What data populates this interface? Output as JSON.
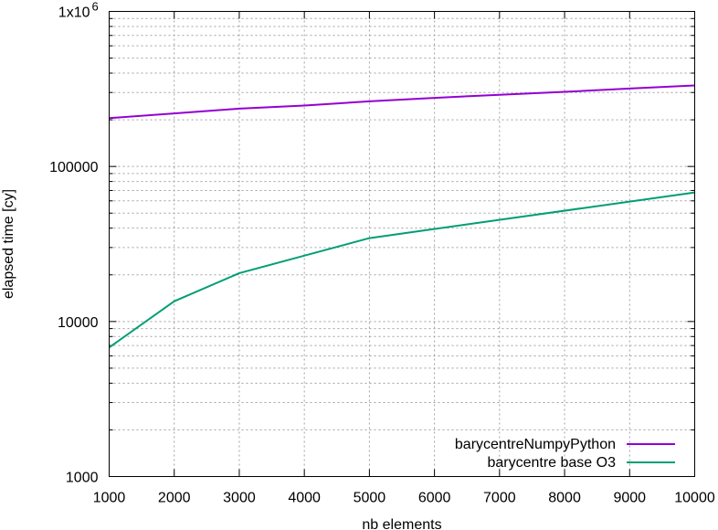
{
  "chart_data": {
    "type": "line",
    "xlabel": "nb elements",
    "ylabel": "elapsed time [cy]",
    "x_scale": "linear",
    "y_scale": "log",
    "xlim": [
      1000,
      10000
    ],
    "ylim": [
      1000,
      1000000
    ],
    "grid": true,
    "legend_position": "bottom-right",
    "x_ticks": [
      1000,
      2000,
      3000,
      4000,
      5000,
      6000,
      7000,
      8000,
      9000,
      10000
    ],
    "x_tick_labels": [
      "1000",
      "2000",
      "3000",
      "4000",
      "5000",
      "6000",
      "7000",
      "8000",
      "9000",
      "10000"
    ],
    "y_ticks": [
      1000,
      10000,
      100000,
      1000000
    ],
    "y_tick_labels": [
      "1000",
      "10000",
      "100000",
      "1x10"
    ],
    "y_top_exponent": "6",
    "series": [
      {
        "name": "barycentreNumpyPython",
        "color": "#9400d3",
        "x": [
          1000,
          2000,
          3000,
          4000,
          5000,
          6000,
          7000,
          8000,
          9000,
          10000
        ],
        "values": [
          205000,
          220000,
          236000,
          247000,
          263000,
          277000,
          290000,
          303000,
          318000,
          333000
        ]
      },
      {
        "name": "barycentre base O3",
        "color": "#009e73",
        "x": [
          1000,
          2000,
          3000,
          5000,
          10000
        ],
        "values": [
          6800,
          13500,
          20500,
          34500,
          68000
        ]
      }
    ]
  }
}
